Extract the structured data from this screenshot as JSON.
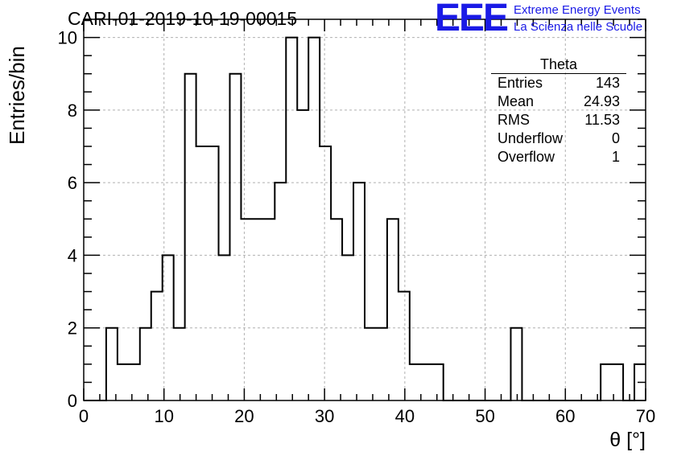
{
  "title": "CARI-01-2019-10-19-00015",
  "logo": {
    "mark": "EEE",
    "line1": "Extreme Energy Events",
    "line2": "La Scienza nelle Scuole",
    "color": "#1a1ae6"
  },
  "stats": {
    "title": "Theta",
    "rows": [
      {
        "label": "Entries",
        "value": "143"
      },
      {
        "label": "Mean",
        "value": "24.93"
      },
      {
        "label": "RMS",
        "value": "11.53"
      },
      {
        "label": "Underflow",
        "value": "0"
      },
      {
        "label": "Overflow",
        "value": "1"
      }
    ]
  },
  "chart_data": {
    "type": "histogram",
    "title": "CARI-01-2019-10-19-00015",
    "xlabel": "θ [°]",
    "ylabel": "Entries/bin",
    "xlim": [
      0,
      70
    ],
    "ylim": [
      0,
      10.5
    ],
    "xticks": [
      0,
      10,
      20,
      30,
      40,
      50,
      60,
      70
    ],
    "yticks": [
      0,
      2,
      4,
      6,
      8,
      10
    ],
    "grid": true,
    "bin_width": 1.4,
    "counts": [
      0,
      0,
      2,
      1,
      1,
      2,
      3,
      4,
      2,
      9,
      7,
      7,
      4,
      9,
      5,
      5,
      5,
      6,
      10,
      8,
      10,
      7,
      5,
      4,
      6,
      2,
      2,
      5,
      3,
      1,
      1,
      1,
      0,
      0,
      0,
      0,
      0,
      0,
      2,
      0,
      0,
      0,
      0,
      0,
      0,
      0,
      1,
      1,
      0,
      1
    ]
  }
}
